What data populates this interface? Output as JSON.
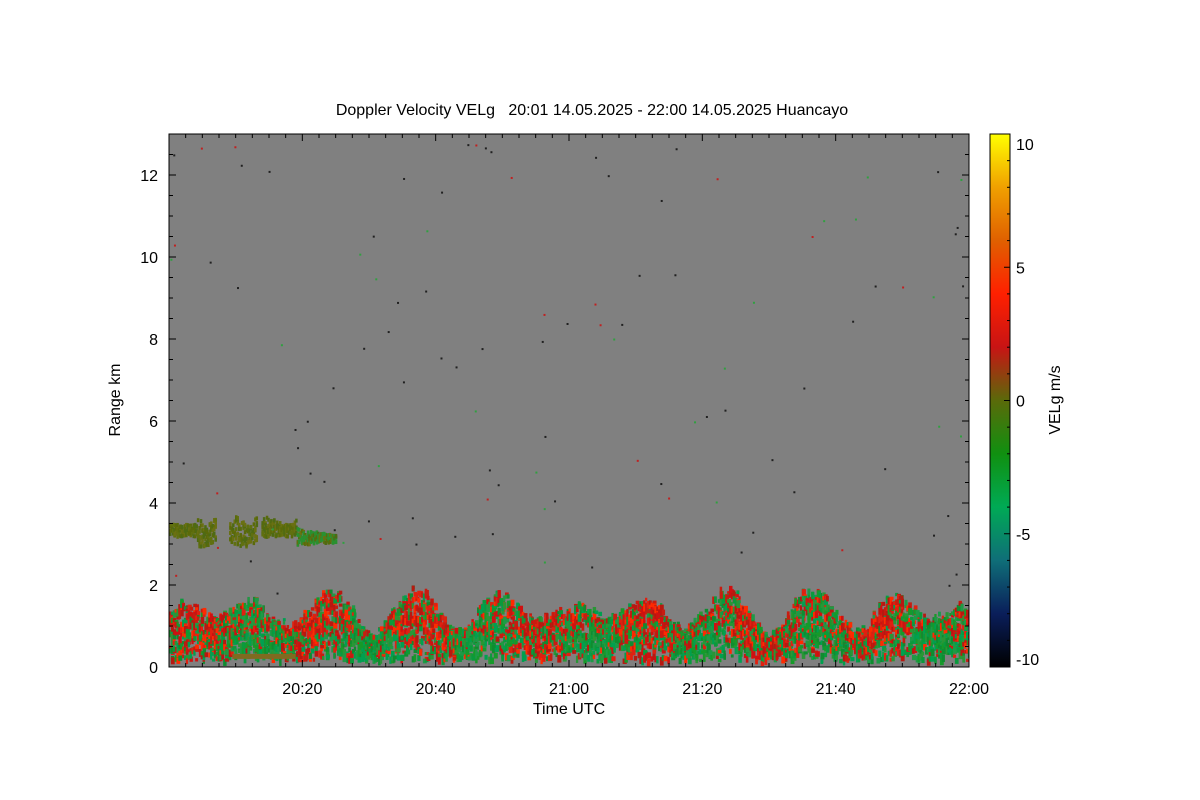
{
  "chart_data": {
    "type": "heatmap",
    "title": "Doppler Velocity VELg   20:01 14.05.2025 - 22:00 14.05.2025 Huancayo",
    "xlabel": "Time UTC",
    "ylabel": "Range km",
    "x_ticks": [
      "20:20",
      "20:40",
      "21:00",
      "21:20",
      "21:40",
      "22:00"
    ],
    "x_tick_minutes": [
      20,
      40,
      60,
      80,
      100,
      120
    ],
    "xlim_minutes": [
      0,
      120
    ],
    "y_ticks": [
      0,
      2,
      4,
      6,
      8,
      10,
      12
    ],
    "ylim": [
      0,
      13
    ],
    "background_color": "#808080",
    "colorbar": {
      "label": "VELg m/s",
      "ticks": [
        10,
        5,
        0,
        -5,
        -10
      ],
      "range": [
        -10,
        10
      ],
      "colors": [
        "#000000",
        "#0a1e5a",
        "#0f6e78",
        "#00aa55",
        "#109010",
        "#5a6a0a",
        "#c81414",
        "#ff2000",
        "#e06000",
        "#f0a000",
        "#ffff00"
      ]
    },
    "features": [
      {
        "name": "elevated layer",
        "t_start": 0,
        "t_end": 25,
        "h_bottom": 3.0,
        "h_top": 3.7,
        "velocity": 0
      },
      {
        "name": "boundary layer",
        "t_start": 0,
        "t_end": 120,
        "h_bottom": 0.1,
        "h_top": 1.6,
        "velocity": [
          -3,
          2
        ]
      }
    ]
  }
}
